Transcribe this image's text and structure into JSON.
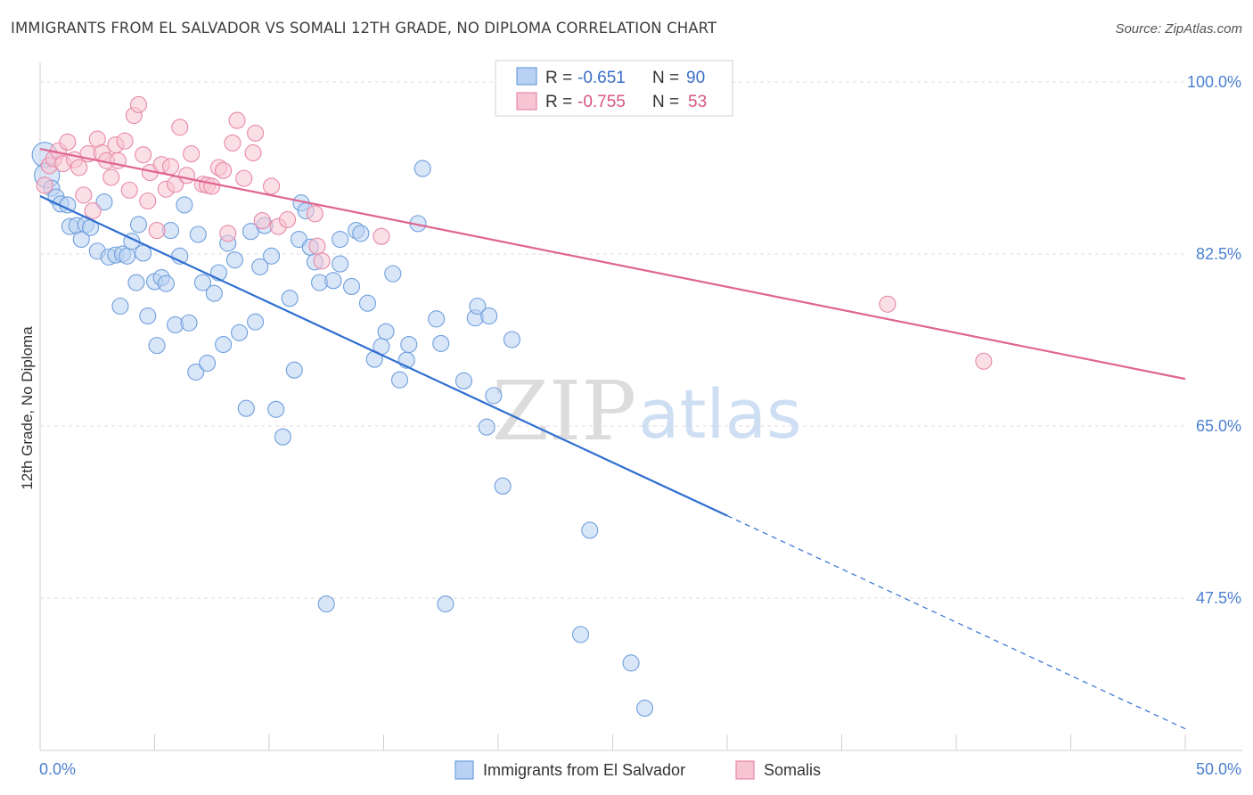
{
  "title": "IMMIGRANTS FROM EL SALVADOR VS SOMALI 12TH GRADE, NO DIPLOMA CORRELATION CHART",
  "source": "Source: ZipAtlas.com",
  "watermark": {
    "zip": "ZIP",
    "atlas": "atlas"
  },
  "colors": {
    "blue_fill": "#b9d1f2",
    "blue_stroke": "#6f9fdd",
    "blue_line": "#2f6fd0",
    "pink_fill": "#f7c4d3",
    "pink_stroke": "#e889a6",
    "pink_line": "#e06590",
    "tick": "#4a7fd0",
    "grid": "#dddddd"
  },
  "stats": {
    "r_label": "R =",
    "n_label": "N =",
    "rows": [
      {
        "r": "-0.651",
        "n": "90"
      },
      {
        "r": "-0.755",
        "n": "53"
      }
    ]
  },
  "chart_data": {
    "type": "scatter",
    "title": "IMMIGRANTS FROM EL SALVADOR VS SOMALI 12TH GRADE, NO DIPLOMA CORRELATION CHART",
    "xlabel": "",
    "ylabel": "12th Grade, No Diploma",
    "xlim": [
      0,
      50
    ],
    "ylim": [
      32,
      102
    ],
    "x_tick_labels": [
      {
        "value": 0,
        "label": "0.0%"
      },
      {
        "value": 50,
        "label": "50.0%"
      }
    ],
    "y_tick_labels": [
      {
        "value": 100,
        "label": "100.0%"
      },
      {
        "value": 82.5,
        "label": "82.5%"
      },
      {
        "value": 65,
        "label": "65.0%"
      },
      {
        "value": 47.5,
        "label": "47.5%"
      }
    ],
    "grid": true,
    "legend_position": "bottom",
    "series": [
      {
        "name": "Immigrants from El Salvador",
        "color": "#6f9fdd",
        "trend": {
          "x0": 0,
          "y0": 88.4,
          "x1": 50,
          "y1": 34.2,
          "solid_until": 30
        },
        "points": [
          [
            0.2,
            92.6
          ],
          [
            0.3,
            90.5
          ],
          [
            0.5,
            89.2
          ],
          [
            0.7,
            88.3
          ],
          [
            0.9,
            87.6
          ],
          [
            1.2,
            87.5
          ],
          [
            1.3,
            85.3
          ],
          [
            1.6,
            85.4
          ],
          [
            1.8,
            84.0
          ],
          [
            2.0,
            85.5
          ],
          [
            2.2,
            85.2
          ],
          [
            2.5,
            82.8
          ],
          [
            2.8,
            87.8
          ],
          [
            3.0,
            82.2
          ],
          [
            3.3,
            82.4
          ],
          [
            3.5,
            77.2
          ],
          [
            3.6,
            82.5
          ],
          [
            3.8,
            82.3
          ],
          [
            4.0,
            83.8
          ],
          [
            4.2,
            79.6
          ],
          [
            4.3,
            85.5
          ],
          [
            4.5,
            82.6
          ],
          [
            4.7,
            76.2
          ],
          [
            5.0,
            79.7
          ],
          [
            5.1,
            73.2
          ],
          [
            5.3,
            80.1
          ],
          [
            5.5,
            79.5
          ],
          [
            5.7,
            84.9
          ],
          [
            5.9,
            75.3
          ],
          [
            6.1,
            82.3
          ],
          [
            6.3,
            87.5
          ],
          [
            6.5,
            75.5
          ],
          [
            6.8,
            70.5
          ],
          [
            6.9,
            84.5
          ],
          [
            7.1,
            79.6
          ],
          [
            7.3,
            71.4
          ],
          [
            7.6,
            78.5
          ],
          [
            7.8,
            80.6
          ],
          [
            8.0,
            73.3
          ],
          [
            8.2,
            83.6
          ],
          [
            8.5,
            81.9
          ],
          [
            8.7,
            74.5
          ],
          [
            9.0,
            66.8
          ],
          [
            9.2,
            84.8
          ],
          [
            9.4,
            75.6
          ],
          [
            9.6,
            81.2
          ],
          [
            9.8,
            85.4
          ],
          [
            10.1,
            82.3
          ],
          [
            10.3,
            66.7
          ],
          [
            10.6,
            63.9
          ],
          [
            10.9,
            78.0
          ],
          [
            11.1,
            70.7
          ],
          [
            11.3,
            84.0
          ],
          [
            11.4,
            87.7
          ],
          [
            11.6,
            86.9
          ],
          [
            11.8,
            83.2
          ],
          [
            12.0,
            81.7
          ],
          [
            12.2,
            79.6
          ],
          [
            12.5,
            46.9
          ],
          [
            12.8,
            79.8
          ],
          [
            13.1,
            81.5
          ],
          [
            13.1,
            84.0
          ],
          [
            13.6,
            79.2
          ],
          [
            13.8,
            84.9
          ],
          [
            14.0,
            84.6
          ],
          [
            14.3,
            77.5
          ],
          [
            14.6,
            71.8
          ],
          [
            14.9,
            73.1
          ],
          [
            15.1,
            74.6
          ],
          [
            15.4,
            80.5
          ],
          [
            15.7,
            69.7
          ],
          [
            16.0,
            71.7
          ],
          [
            16.1,
            73.3
          ],
          [
            16.5,
            85.6
          ],
          [
            16.7,
            91.2
          ],
          [
            17.3,
            75.9
          ],
          [
            17.5,
            73.4
          ],
          [
            17.7,
            46.9
          ],
          [
            18.5,
            69.6
          ],
          [
            19.0,
            76.0
          ],
          [
            19.1,
            77.2
          ],
          [
            19.5,
            64.9
          ],
          [
            19.6,
            76.2
          ],
          [
            19.8,
            68.1
          ],
          [
            20.2,
            58.9
          ],
          [
            20.6,
            73.8
          ],
          [
            23.6,
            43.8
          ],
          [
            24.0,
            54.4
          ],
          [
            25.8,
            40.9
          ],
          [
            26.4,
            36.3
          ]
        ]
      },
      {
        "name": "Somalis",
        "color": "#e889a6",
        "trend": {
          "x0": 0,
          "y0": 93.2,
          "x1": 50,
          "y1": 69.8
        },
        "points": [
          [
            0.2,
            89.5
          ],
          [
            0.4,
            91.5
          ],
          [
            0.6,
            92.2
          ],
          [
            0.8,
            93.0
          ],
          [
            1.0,
            91.7
          ],
          [
            1.2,
            93.9
          ],
          [
            1.5,
            92.1
          ],
          [
            1.7,
            91.3
          ],
          [
            1.9,
            88.5
          ],
          [
            2.1,
            92.7
          ],
          [
            2.3,
            86.9
          ],
          [
            2.5,
            94.2
          ],
          [
            2.7,
            92.8
          ],
          [
            2.9,
            92.0
          ],
          [
            3.1,
            90.3
          ],
          [
            3.3,
            93.6
          ],
          [
            3.4,
            92.0
          ],
          [
            3.7,
            94.0
          ],
          [
            3.9,
            89.0
          ],
          [
            4.1,
            96.6
          ],
          [
            4.3,
            97.7
          ],
          [
            4.5,
            92.6
          ],
          [
            4.7,
            87.9
          ],
          [
            4.8,
            90.8
          ],
          [
            5.1,
            84.9
          ],
          [
            5.3,
            91.6
          ],
          [
            5.5,
            89.1
          ],
          [
            5.7,
            91.4
          ],
          [
            5.9,
            89.6
          ],
          [
            6.1,
            95.4
          ],
          [
            6.4,
            90.5
          ],
          [
            6.6,
            92.7
          ],
          [
            7.1,
            89.6
          ],
          [
            7.3,
            89.5
          ],
          [
            7.5,
            89.4
          ],
          [
            7.8,
            91.3
          ],
          [
            8.0,
            91.0
          ],
          [
            8.2,
            84.6
          ],
          [
            8.4,
            93.8
          ],
          [
            8.6,
            96.1
          ],
          [
            8.9,
            90.2
          ],
          [
            9.3,
            92.8
          ],
          [
            9.4,
            94.8
          ],
          [
            9.7,
            85.9
          ],
          [
            10.1,
            89.4
          ],
          [
            10.4,
            85.3
          ],
          [
            10.8,
            86.0
          ],
          [
            12.0,
            86.6
          ],
          [
            12.1,
            83.3
          ],
          [
            12.3,
            81.8
          ],
          [
            14.9,
            84.3
          ],
          [
            37.0,
            77.4
          ],
          [
            41.2,
            71.6
          ]
        ]
      }
    ]
  }
}
